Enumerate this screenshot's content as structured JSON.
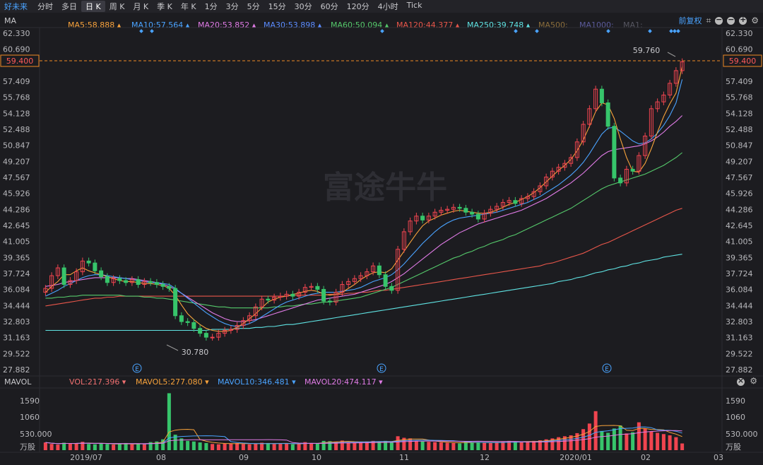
{
  "stock_name": "好未来",
  "tabs": [
    "分时",
    "多日",
    "日 K",
    "周 K",
    "月 K",
    "季 K",
    "年 K",
    "1分",
    "3分",
    "5分",
    "15分",
    "30分",
    "60分",
    "120分",
    "4小时",
    "Tick"
  ],
  "active_tab": "日 K",
  "main_indicator": "MA",
  "ma_labels": [
    {
      "text": "MA5:58.888",
      "color": "#f7a23b"
    },
    {
      "text": "MA10:57.564",
      "color": "#4aa3ff"
    },
    {
      "text": "MA20:53.852",
      "color": "#e07be6"
    },
    {
      "text": "MA30:53.898",
      "color": "#5b8cff"
    },
    {
      "text": "MA60:50.094",
      "color": "#55c96b"
    },
    {
      "text": "MA120:44.377",
      "color": "#e8564a"
    },
    {
      "text": "MA250:39.748",
      "color": "#5fe3e3"
    },
    {
      "text": "MA500:",
      "color": "#8a6d3b"
    },
    {
      "text": "MA1000:",
      "color": "#5b5a9a"
    },
    {
      "text": "MA1:",
      "color": "#555560"
    }
  ],
  "adjust_label": "前复权",
  "sub_indicator": "MAVOL",
  "vol_labels": [
    {
      "text": "VOL:217.396",
      "color": "#f07070"
    },
    {
      "text": "MAVOL5:277.080",
      "color": "#f7a23b"
    },
    {
      "text": "MAVOL10:346.481",
      "color": "#4aa3ff"
    },
    {
      "text": "MAVOL20:474.117",
      "color": "#e07be6"
    }
  ],
  "watermark": "富途牛牛",
  "price_axis_left": [
    "62.330",
    "60.690",
    "59.400",
    "57.409",
    "55.768",
    "54.128",
    "52.488",
    "50.847",
    "49.207",
    "47.567",
    "45.926",
    "44.286",
    "42.645",
    "41.005",
    "39.365",
    "37.724",
    "36.084",
    "34.444",
    "32.803",
    "31.163",
    "29.522",
    "27.882"
  ],
  "price_axis_right": [
    "62.330",
    "60.690",
    "59.400",
    "57.409",
    "55.768",
    "54.128",
    "52.488",
    "50.847",
    "49.207",
    "47.567",
    "45.926",
    "44.286",
    "42.645",
    "41.005",
    "39.365",
    "37.724",
    "36.084",
    "34.444",
    "32.803",
    "31.163",
    "29.522",
    "27.882"
  ],
  "current_price": "59.400",
  "high_label": "59.760",
  "low_label": "30.780",
  "vol_axis": [
    "1590",
    "1060",
    "530.000",
    "万股"
  ],
  "x_labels": [
    "2019/07",
    "08",
    "09",
    "10",
    "11",
    "12",
    "2020/01",
    "02",
    "03"
  ],
  "event_marker": "E",
  "chart_data": {
    "type": "line",
    "title": "",
    "ylim": [
      27.882,
      62.33
    ],
    "close": [
      36.2,
      37.5,
      38.3,
      36.6,
      37.0,
      37.9,
      39.0,
      38.8,
      38.0,
      37.4,
      36.8,
      37.2,
      37.0,
      36.8,
      37.1,
      36.6,
      36.9,
      36.8,
      36.6,
      36.4,
      36.2,
      33.4,
      32.8,
      32.7,
      32.1,
      31.6,
      31.2,
      31.2,
      31.6,
      31.9,
      32.0,
      32.4,
      32.9,
      33.4,
      34.3,
      35.1,
      35.0,
      35.3,
      35.4,
      35.6,
      35.4,
      35.8,
      36.3,
      36.4,
      36.1,
      34.9,
      34.8,
      35.8,
      36.6,
      36.9,
      37.2,
      37.5,
      37.9,
      38.5,
      37.6,
      36.4,
      36.0,
      40.2,
      42.0,
      43.1,
      43.6,
      43.2,
      43.6,
      44.0,
      44.2,
      44.3,
      44.5,
      44.4,
      44.0,
      43.8,
      43.3,
      43.9,
      44.3,
      44.6,
      45.0,
      45.2,
      44.9,
      45.4,
      45.6,
      46.1,
      46.7,
      47.6,
      48.2,
      48.6,
      49.0,
      49.6,
      51.2,
      53.0,
      54.6,
      56.6,
      55.2,
      52.8,
      47.5,
      47.0,
      48.4,
      48.2,
      49.8,
      51.8,
      54.6,
      55.3,
      56.0,
      57.2,
      58.5,
      59.4
    ],
    "ma5": [
      35.8,
      36.4,
      36.9,
      37.6,
      37.6,
      38.0,
      38.3,
      38.0,
      37.8,
      37.6,
      37.4,
      37.2,
      37.0,
      36.9,
      36.9,
      36.8,
      36.7,
      36.7,
      36.6,
      36.5,
      36.2,
      35.5,
      34.5,
      33.6,
      33.0,
      32.5,
      32.1,
      31.9,
      31.8,
      31.8,
      31.9,
      32.2,
      32.6,
      33.1,
      33.6,
      34.2,
      34.8,
      35.1,
      35.3,
      35.4,
      35.6,
      35.7,
      35.9,
      36.0,
      35.9,
      35.6,
      35.5,
      35.6,
      35.8,
      36.2,
      36.6,
      37.1,
      37.5,
      37.8,
      37.9,
      37.8,
      38.2,
      39.1,
      40.0,
      40.9,
      41.8,
      42.6,
      43.1,
      43.4,
      43.7,
      43.9,
      44.1,
      44.2,
      44.1,
      44.0,
      43.9,
      43.9,
      44.0,
      44.2,
      44.5,
      44.8,
      45.0,
      45.3,
      45.6,
      46.0,
      46.5,
      47.1,
      47.7,
      48.3,
      48.8,
      49.4,
      50.3,
      51.4,
      52.8,
      54.3,
      55.2,
      55.0,
      53.6,
      51.5,
      49.6,
      48.2,
      48.1,
      49.0,
      50.5,
      52.2,
      53.8,
      55.1,
      56.2,
      58.9
    ],
    "ma10": [
      35.4,
      35.7,
      36.0,
      36.4,
      36.7,
      37.0,
      37.3,
      37.5,
      37.6,
      37.6,
      37.5,
      37.4,
      37.3,
      37.2,
      37.1,
      37.0,
      36.9,
      36.8,
      36.8,
      36.7,
      36.6,
      36.2,
      35.7,
      35.2,
      34.7,
      34.2,
      33.7,
      33.3,
      32.9,
      32.6,
      32.4,
      32.3,
      32.4,
      32.6,
      32.9,
      33.3,
      33.7,
      34.1,
      34.5,
      34.8,
      35.0,
      35.2,
      35.4,
      35.6,
      35.7,
      35.8,
      35.8,
      35.8,
      35.9,
      36.0,
      36.1,
      36.3,
      36.6,
      36.9,
      37.1,
      37.3,
      37.6,
      38.1,
      38.7,
      39.4,
      40.1,
      40.8,
      41.4,
      42.0,
      42.5,
      42.9,
      43.2,
      43.4,
      43.5,
      43.6,
      43.7,
      43.8,
      43.9,
      44.0,
      44.2,
      44.4,
      44.6,
      44.8,
      45.0,
      45.3,
      45.6,
      46.0,
      46.4,
      46.8,
      47.3,
      47.8,
      48.4,
      49.1,
      50.0,
      51.0,
      52.0,
      52.6,
      52.7,
      52.3,
      51.8,
      51.3,
      51.0,
      51.1,
      51.5,
      52.1,
      52.9,
      53.9,
      55.2,
      57.6
    ],
    "ma20": [
      36.4,
      36.5,
      36.6,
      36.8,
      36.9,
      37.0,
      37.1,
      37.2,
      37.3,
      37.3,
      37.3,
      37.3,
      37.3,
      37.2,
      37.2,
      37.1,
      37.0,
      36.9,
      36.8,
      36.6,
      36.4,
      36.1,
      35.7,
      35.3,
      34.9,
      34.5,
      34.1,
      33.7,
      33.4,
      33.1,
      32.9,
      32.8,
      32.8,
      32.9,
      33.0,
      33.2,
      33.4,
      33.6,
      33.8,
      34.0,
      34.2,
      34.4,
      34.6,
      34.8,
      35.0,
      35.1,
      35.2,
      35.3,
      35.4,
      35.5,
      35.6,
      35.8,
      36.0,
      36.2,
      36.4,
      36.6,
      36.9,
      37.3,
      37.7,
      38.2,
      38.7,
      39.2,
      39.7,
      40.2,
      40.7,
      41.1,
      41.5,
      41.9,
      42.2,
      42.5,
      42.8,
      43.0,
      43.2,
      43.4,
      43.6,
      43.8,
      44.0,
      44.2,
      44.5,
      44.8,
      45.1,
      45.4,
      45.8,
      46.2,
      46.6,
      47.0,
      47.5,
      48.0,
      48.6,
      49.2,
      49.8,
      50.2,
      50.4,
      50.5,
      50.6,
      50.7,
      50.8,
      51.0,
      51.3,
      51.7,
      52.2,
      52.8,
      53.3,
      53.9
    ],
    "ma60": [
      35.2,
      35.2,
      35.3,
      35.3,
      35.4,
      35.4,
      35.5,
      35.5,
      35.5,
      35.5,
      35.5,
      35.5,
      35.5,
      35.4,
      35.4,
      35.4,
      35.3,
      35.3,
      35.2,
      35.2,
      35.1,
      35.0,
      34.9,
      34.8,
      34.7,
      34.6,
      34.5,
      34.4,
      34.3,
      34.3,
      34.2,
      34.2,
      34.2,
      34.2,
      34.2,
      34.2,
      34.2,
      34.3,
      34.3,
      34.4,
      34.4,
      34.5,
      34.6,
      34.6,
      34.7,
      34.8,
      34.8,
      34.9,
      35.0,
      35.1,
      35.2,
      35.3,
      35.5,
      35.7,
      35.9,
      36.1,
      36.3,
      36.6,
      36.9,
      37.2,
      37.5,
      37.8,
      38.1,
      38.4,
      38.7,
      39.0,
      39.3,
      39.5,
      39.8,
      40.0,
      40.3,
      40.5,
      40.8,
      41.0,
      41.2,
      41.5,
      41.7,
      42.0,
      42.3,
      42.6,
      42.9,
      43.2,
      43.5,
      43.8,
      44.1,
      44.4,
      44.8,
      45.2,
      45.6,
      46.0,
      46.4,
      46.7,
      46.9,
      47.1,
      47.3,
      47.5,
      47.7,
      47.9,
      48.2,
      48.5,
      48.8,
      49.2,
      49.6,
      50.1
    ],
    "ma120": [
      34.4,
      34.5,
      34.6,
      34.7,
      34.8,
      34.9,
      35.0,
      35.1,
      35.2,
      35.2,
      35.3,
      35.3,
      35.4,
      35.4,
      35.4,
      35.4,
      35.4,
      35.4,
      35.4,
      35.4,
      35.4,
      35.4,
      35.4,
      35.4,
      35.4,
      35.4,
      35.4,
      35.4,
      35.4,
      35.4,
      35.4,
      35.4,
      35.4,
      35.4,
      35.4,
      35.4,
      35.4,
      35.4,
      35.4,
      35.4,
      35.5,
      35.5,
      35.5,
      35.5,
      35.5,
      35.5,
      35.6,
      35.6,
      35.6,
      35.7,
      35.7,
      35.8,
      35.8,
      35.9,
      36.0,
      36.0,
      36.1,
      36.2,
      36.3,
      36.4,
      36.5,
      36.6,
      36.7,
      36.8,
      36.9,
      37.0,
      37.1,
      37.2,
      37.3,
      37.4,
      37.5,
      37.6,
      37.7,
      37.8,
      37.9,
      38.0,
      38.1,
      38.2,
      38.3,
      38.4,
      38.5,
      38.7,
      38.8,
      39.0,
      39.2,
      39.4,
      39.6,
      39.8,
      40.1,
      40.4,
      40.7,
      40.9,
      41.2,
      41.5,
      41.8,
      42.1,
      42.4,
      42.7,
      43.0,
      43.3,
      43.6,
      43.9,
      44.2,
      44.4
    ],
    "ma250": [
      31.9,
      31.9,
      31.9,
      31.9,
      31.9,
      31.9,
      31.9,
      31.9,
      31.9,
      31.9,
      31.9,
      31.9,
      31.9,
      31.9,
      31.9,
      31.9,
      31.9,
      31.9,
      31.9,
      31.9,
      31.9,
      31.9,
      31.9,
      31.9,
      31.9,
      31.9,
      31.9,
      32.0,
      32.0,
      32.0,
      32.0,
      32.1,
      32.1,
      32.1,
      32.2,
      32.2,
      32.3,
      32.3,
      32.4,
      32.5,
      32.5,
      32.6,
      32.7,
      32.8,
      32.9,
      33.0,
      33.1,
      33.2,
      33.3,
      33.4,
      33.5,
      33.6,
      33.7,
      33.8,
      33.9,
      34.0,
      34.1,
      34.2,
      34.3,
      34.4,
      34.5,
      34.6,
      34.7,
      34.8,
      34.9,
      35.0,
      35.1,
      35.2,
      35.3,
      35.4,
      35.5,
      35.6,
      35.7,
      35.8,
      35.9,
      36.0,
      36.1,
      36.2,
      36.3,
      36.4,
      36.5,
      36.6,
      36.7,
      36.9,
      37.0,
      37.1,
      37.3,
      37.4,
      37.6,
      37.8,
      37.9,
      38.1,
      38.2,
      38.4,
      38.5,
      38.7,
      38.8,
      39.0,
      39.1,
      39.2,
      39.4,
      39.5,
      39.6,
      39.7
    ],
    "volume": [
      250,
      200,
      180,
      240,
      210,
      230,
      270,
      200,
      190,
      220,
      200,
      180,
      200,
      230,
      190,
      210,
      200,
      260,
      280,
      350,
      1840,
      500,
      380,
      300,
      280,
      250,
      230,
      200,
      190,
      210,
      220,
      230,
      200,
      190,
      210,
      240,
      230,
      200,
      210,
      220,
      190,
      200,
      260,
      230,
      220,
      300,
      290,
      280,
      310,
      250,
      240,
      260,
      280,
      300,
      270,
      300,
      260,
      450,
      400,
      380,
      300,
      280,
      270,
      260,
      250,
      240,
      230,
      220,
      280,
      260,
      250,
      240,
      230,
      260,
      280,
      300,
      270,
      260,
      280,
      300,
      320,
      350,
      380,
      420,
      450,
      480,
      550,
      680,
      860,
      1260,
      620,
      560,
      700,
      800,
      540,
      580,
      900,
      700,
      610,
      560,
      520,
      480,
      420,
      217
    ],
    "vol_ylim": [
      0,
      1850
    ]
  }
}
